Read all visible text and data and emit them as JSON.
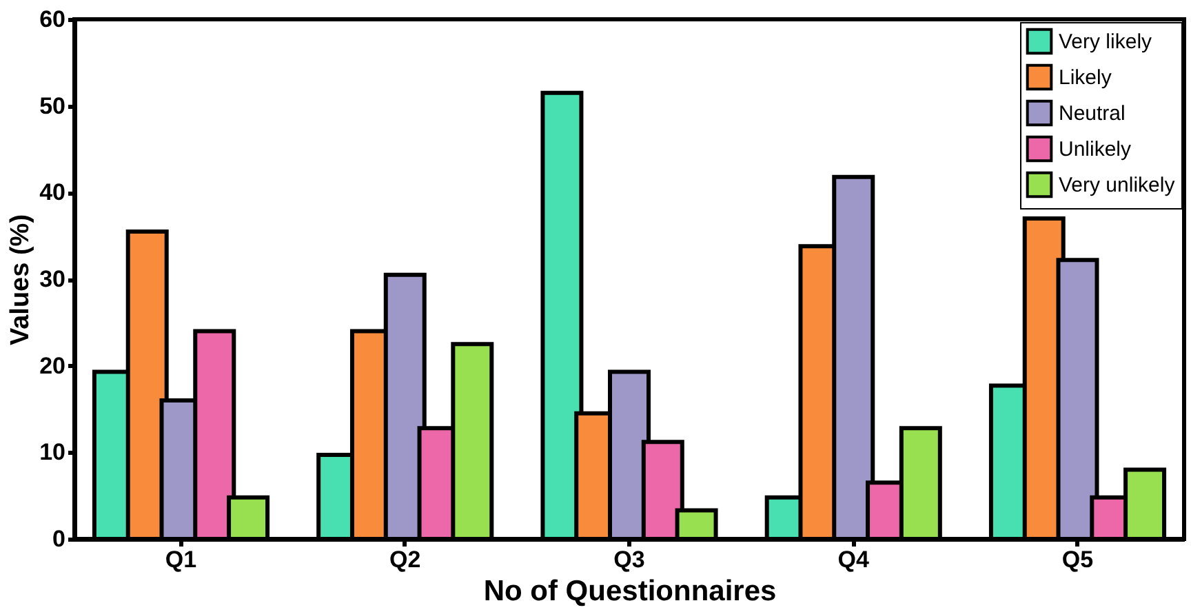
{
  "chart_data": {
    "type": "bar",
    "xlabel": "No of Questionnaires",
    "ylabel": "Values (%)",
    "categories": [
      "Q1",
      "Q2",
      "Q3",
      "Q4",
      "Q5"
    ],
    "series": [
      {
        "name": "Very likely",
        "color": "#48e0b0",
        "values": [
          19.3,
          9.7,
          51.5,
          4.8,
          17.7
        ]
      },
      {
        "name": "Likely",
        "color": "#f98c3c",
        "values": [
          35.5,
          24,
          14.5,
          33.8,
          37
        ]
      },
      {
        "name": "Neutral",
        "color": "#9d98c8",
        "values": [
          16,
          30.5,
          19.3,
          41.8,
          32.2
        ]
      },
      {
        "name": "Unlikely",
        "color": "#ec68a8",
        "values": [
          24,
          12.8,
          11.2,
          6.5,
          4.8
        ]
      },
      {
        "name": "Very unlikely",
        "color": "#98e050",
        "values": [
          4.8,
          22.5,
          3.3,
          12.8,
          8
        ]
      }
    ],
    "ylim": [
      0,
      60
    ],
    "yticks": [
      0,
      10,
      20,
      30,
      40,
      50,
      60
    ],
    "grid": false,
    "legend": "top right"
  }
}
